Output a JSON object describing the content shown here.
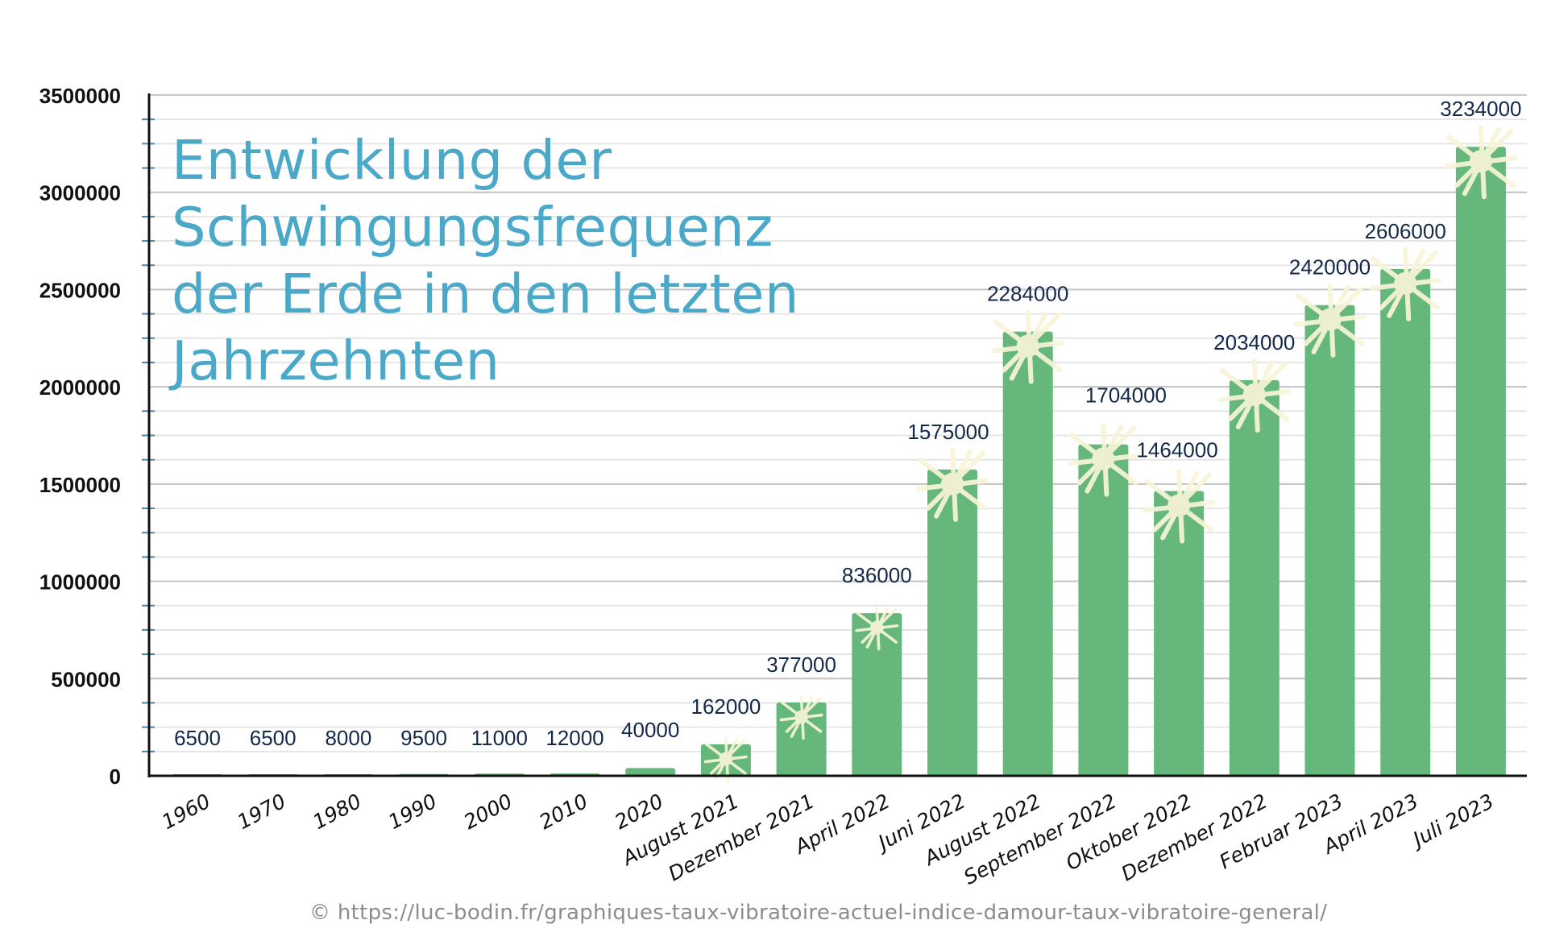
{
  "chart_data": {
    "type": "bar",
    "title": "Entwicklung der Schwingungsfrequenz der Erde in den letzten Jahrzehnten",
    "title_lines": [
      "Entwicklung der",
      "Schwingungsfrequenz",
      "der Erde in den letzten",
      "Jahrzehnten"
    ],
    "xlabel": "",
    "ylabel": "",
    "categories": [
      "1960",
      "1970",
      "1980",
      "1990",
      "2000",
      "2010",
      "2020",
      "August 2021",
      "Dezember 2021",
      "April 2022",
      "Juni 2022",
      "August 2022",
      "September 2022",
      "Oktober 2022",
      "Dezember 2022",
      "Februar 2023",
      "April 2023",
      "Juli 2023"
    ],
    "values": [
      6500,
      6500,
      8000,
      9500,
      11000,
      12000,
      40000,
      162000,
      377000,
      836000,
      1575000,
      2284000,
      1704000,
      1464000,
      2034000,
      2420000,
      2606000,
      3234000
    ],
    "data_labels": [
      "6500",
      "6500",
      "8000",
      "9500",
      "11000",
      "12000",
      "40000",
      "162000",
      "377000",
      "836000",
      "1575000",
      "2284000",
      "1704000",
      "1464000",
      "2034000",
      "2420000",
      "2606000",
      "3234000"
    ],
    "ylim": [
      0,
      3500000
    ],
    "yticks": [
      0,
      500000,
      1000000,
      1500000,
      2000000,
      2500000,
      3000000,
      3500000
    ],
    "ytick_labels": [
      "0",
      "500000",
      "1000000",
      "1500000",
      "2000000",
      "2500000",
      "3000000",
      "3500000"
    ],
    "minor_grid_step": 125000,
    "grid": true,
    "legend": "none",
    "colors": {
      "bar": "#66b77b",
      "sparkle": "#f8f5d8",
      "title": "#4aa8c9",
      "data_label": "#14284a",
      "grid": "#d9d9d9",
      "minor_tick": "#4a86a8"
    }
  },
  "source": {
    "text": "© https://luc-bodin.fr/graphiques-taux-vibratoire-actuel-indice-damour-taux-vibratoire-general/"
  }
}
